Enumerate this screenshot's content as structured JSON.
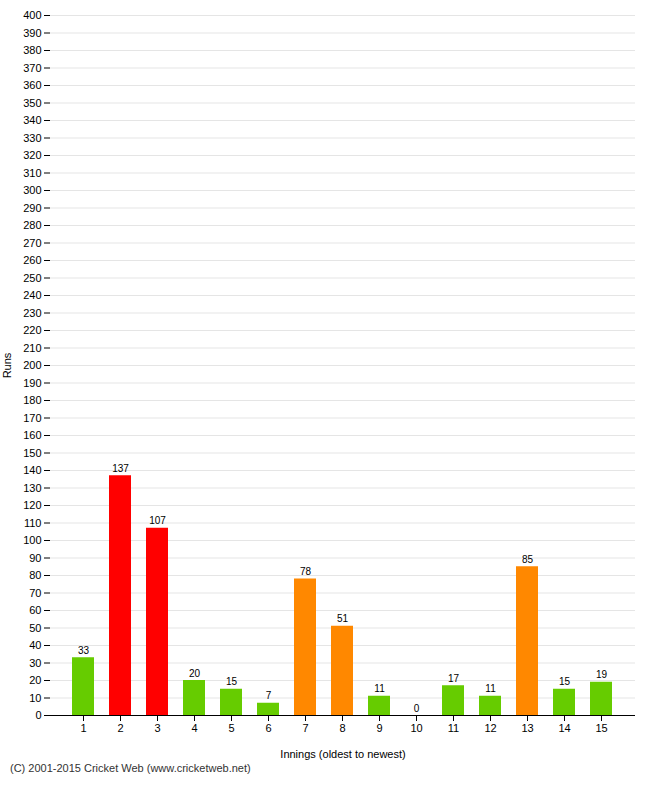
{
  "chart_data": {
    "type": "bar",
    "xlabel": "Innings (oldest to newest)",
    "ylabel": "Runs",
    "caption": "(C) 2001-2015 Cricket Web (www.cricketweb.net)",
    "categories": [
      "1",
      "2",
      "3",
      "4",
      "5",
      "6",
      "7",
      "8",
      "9",
      "10",
      "11",
      "12",
      "13",
      "14",
      "15"
    ],
    "values": [
      33,
      137,
      107,
      20,
      15,
      7,
      78,
      51,
      11,
      0,
      17,
      11,
      85,
      15,
      19
    ],
    "colors": [
      "#66cc00",
      "#ff0000",
      "#ff0000",
      "#66cc00",
      "#66cc00",
      "#66cc00",
      "#ff8800",
      "#ff8800",
      "#66cc00",
      "#66cc00",
      "#66cc00",
      "#66cc00",
      "#ff8800",
      "#66cc00",
      "#66cc00"
    ],
    "ylim": [
      0,
      400
    ],
    "yticks": [
      0,
      10,
      20,
      30,
      40,
      50,
      60,
      70,
      80,
      90,
      100,
      110,
      120,
      130,
      140,
      150,
      160,
      170,
      180,
      190,
      200,
      210,
      220,
      230,
      240,
      250,
      260,
      270,
      280,
      290,
      300,
      310,
      320,
      330,
      340,
      350,
      360,
      370,
      380,
      390,
      400
    ],
    "grid": true,
    "data_labels": true
  }
}
